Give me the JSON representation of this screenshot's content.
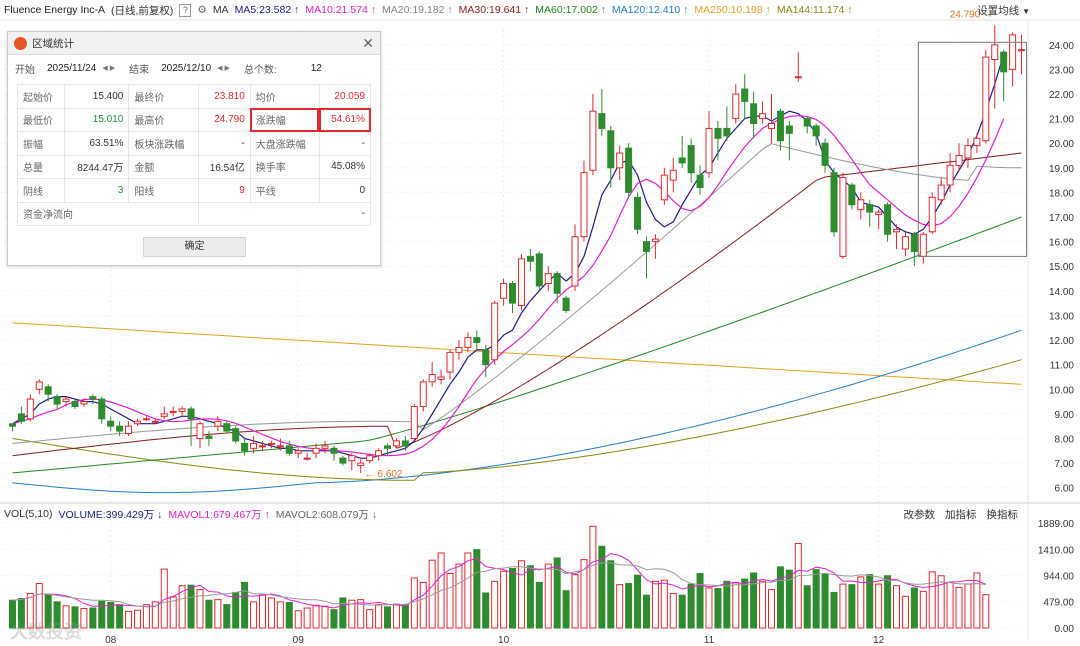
{
  "header": {
    "stock_title": "Fluence Energy Inc-A",
    "mode": "(日线,前复权)",
    "help": "?",
    "ma_label": "MA",
    "ma_items": [
      {
        "text": "MA5:23.582",
        "color": "#1b1b8c"
      },
      {
        "text": "MA10:21.574",
        "color": "#e020d0"
      },
      {
        "text": "MA20:19.182",
        "color": "#888888"
      },
      {
        "text": "MA30:19.641",
        "color": "#8b1a1a"
      },
      {
        "text": "MA60:17.002",
        "color": "#1f8a1f"
      },
      {
        "text": "MA120:12.410",
        "color": "#1e7fd0"
      },
      {
        "text": "MA250:10.198",
        "color": "#e8a020"
      },
      {
        "text": "MA144:11.174",
        "color": "#8a8a10"
      }
    ],
    "set_ma": "设置均线"
  },
  "dialog": {
    "title": "区域统计",
    "start_label": "开始",
    "start_value": "2025/11/24",
    "end_label": "结束",
    "end_value": "2025/12/10",
    "count_label": "总个数:",
    "count_value": "12",
    "rows": [
      [
        {
          "l": "起始价",
          "v": "15.400",
          "c": ""
        },
        {
          "l": "最终价",
          "v": "23.810",
          "c": "red"
        },
        {
          "l": "均价",
          "v": "20.059",
          "c": "red"
        }
      ],
      [
        {
          "l": "最低价",
          "v": "15.010",
          "c": "green"
        },
        {
          "l": "最高价",
          "v": "24.790",
          "c": "red"
        },
        {
          "l": "涨跌幅",
          "v": "54.61%",
          "c": "red",
          "hl": true
        }
      ],
      [
        {
          "l": "振幅",
          "v": "63.51%",
          "c": ""
        },
        {
          "l": "板块涨跌幅",
          "v": "-",
          "c": ""
        },
        {
          "l": "大盘涨跌幅",
          "v": "-",
          "c": ""
        }
      ],
      [
        {
          "l": "总量",
          "v": "8244.47万",
          "c": ""
        },
        {
          "l": "金额",
          "v": "16.54亿",
          "c": ""
        },
        {
          "l": "换手率",
          "v": "45.08%",
          "c": ""
        }
      ],
      [
        {
          "l": "阴线",
          "v": "3",
          "c": "green"
        },
        {
          "l": "阳线",
          "v": "9",
          "c": "red"
        },
        {
          "l": "平线",
          "v": "0",
          "c": ""
        }
      ],
      [
        {
          "l": "资金净流向",
          "v": "-",
          "c": ""
        }
      ]
    ],
    "ok_label": "确定"
  },
  "volume_header": {
    "label": "VOL(5,10)",
    "items": [
      {
        "text": "VOLUME:399.429万",
        "color": "#1b1b8c"
      },
      {
        "text": "MAVOL1:679.467万",
        "color": "#e020d0"
      },
      {
        "text": "MAVOL2:608.079万",
        "color": "#666666"
      }
    ],
    "buttons": [
      "改参数",
      "加指标",
      "换指标"
    ]
  },
  "annotations": {
    "high": "24.790",
    "low": "6.602"
  },
  "watermark": "大数投资",
  "colors": {
    "up": "#e0292e",
    "down": "#2e8b2e",
    "bg": "#ffffff"
  },
  "chart_data": {
    "type": "candlestick",
    "price_axis": {
      "min": 5.5,
      "max": 24.6,
      "ticks": [
        "24.000",
        "23.000",
        "22.000",
        "21.000",
        "20.000",
        "19.000",
        "18.000",
        "17.000",
        "16.000",
        "15.000",
        "14.000",
        "13.000",
        "12.000",
        "11.000",
        "10.000",
        "9.000",
        "8.000",
        "7.000",
        "6.000"
      ]
    },
    "volume_axis": {
      "ticks": [
        "1889.00",
        "1410.00",
        "944.00",
        "479.00",
        "0.00"
      ],
      "max": 1889
    },
    "x_labels": [
      {
        "i": 11,
        "t": "08"
      },
      {
        "i": 32,
        "t": "09"
      },
      {
        "i": 55,
        "t": "10"
      },
      {
        "i": 78,
        "t": "11"
      },
      {
        "i": 97,
        "t": "12"
      }
    ],
    "candles": [
      [
        8.6,
        8.5,
        8.6,
        8.3
      ],
      [
        9.0,
        8.7,
        9.3,
        8.6
      ],
      [
        8.8,
        9.6,
        9.8,
        8.7
      ],
      [
        10.0,
        10.3,
        10.4,
        9.8
      ],
      [
        10.1,
        9.8,
        10.2,
        9.5
      ],
      [
        9.7,
        9.4,
        9.8,
        9.2
      ],
      [
        9.5,
        9.6,
        9.7,
        9.3
      ],
      [
        9.5,
        9.3,
        9.6,
        9.2
      ],
      [
        9.4,
        9.5,
        9.6,
        9.3
      ],
      [
        9.7,
        9.6,
        9.8,
        9.4
      ],
      [
        9.6,
        8.8,
        9.7,
        8.6
      ],
      [
        8.7,
        8.5,
        8.9,
        8.3
      ],
      [
        8.5,
        8.3,
        8.7,
        8.1
      ],
      [
        8.2,
        8.5,
        8.7,
        8.1
      ],
      [
        8.6,
        8.7,
        8.8,
        8.5
      ],
      [
        8.8,
        8.8,
        8.9,
        8.7
      ],
      [
        8.7,
        8.7,
        8.8,
        8.6
      ],
      [
        8.9,
        9.0,
        9.3,
        8.8
      ],
      [
        9.1,
        9.1,
        9.3,
        8.9
      ],
      [
        9.1,
        9.2,
        9.3,
        8.9
      ],
      [
        9.2,
        8.8,
        9.3,
        7.7
      ],
      [
        8.0,
        8.6,
        8.7,
        7.6
      ],
      [
        8.1,
        8.0,
        8.3,
        7.7
      ],
      [
        8.5,
        8.7,
        8.9,
        8.3
      ],
      [
        8.6,
        8.3,
        8.7,
        8.2
      ],
      [
        8.4,
        7.9,
        8.5,
        7.8
      ],
      [
        7.8,
        7.5,
        8.0,
        7.3
      ],
      [
        7.6,
        7.8,
        8.1,
        7.4
      ],
      [
        7.7,
        7.7,
        7.9,
        7.5
      ],
      [
        7.8,
        7.8,
        7.9,
        7.6
      ],
      [
        7.7,
        7.7,
        8.0,
        7.5
      ],
      [
        7.7,
        7.4,
        7.9,
        7.3
      ],
      [
        7.4,
        7.5,
        7.6,
        7.2
      ],
      [
        7.2,
        7.2,
        7.4,
        7.1
      ],
      [
        7.4,
        7.6,
        7.8,
        7.2
      ],
      [
        7.6,
        7.7,
        7.9,
        7.4
      ],
      [
        7.6,
        7.4,
        7.7,
        7.1
      ],
      [
        7.2,
        7.0,
        7.3,
        6.9
      ],
      [
        7.1,
        7.3,
        7.4,
        6.7
      ],
      [
        6.9,
        7.0,
        7.2,
        6.6
      ],
      [
        7.1,
        7.3,
        7.4,
        7.0
      ],
      [
        7.3,
        7.5,
        7.6,
        7.1
      ],
      [
        7.7,
        7.6,
        7.8,
        7.3
      ],
      [
        7.7,
        7.9,
        8.0,
        7.6
      ],
      [
        7.9,
        7.7,
        8.1,
        7.5
      ],
      [
        8.0,
        9.3,
        9.4,
        7.9
      ],
      [
        9.3,
        10.3,
        10.4,
        9.1
      ],
      [
        10.3,
        10.6,
        11.1,
        10.1
      ],
      [
        10.4,
        10.5,
        10.8,
        10.2
      ],
      [
        10.7,
        11.5,
        11.6,
        10.4
      ],
      [
        11.5,
        11.7,
        12.0,
        11.2
      ],
      [
        11.7,
        12.1,
        12.3,
        11.5
      ],
      [
        12.1,
        11.9,
        12.4,
        11.6
      ],
      [
        11.6,
        11.0,
        11.8,
        10.5
      ],
      [
        11.2,
        13.5,
        13.6,
        11.0
      ],
      [
        13.7,
        14.3,
        14.5,
        13.4
      ],
      [
        14.3,
        13.5,
        14.4,
        13.1
      ],
      [
        13.4,
        15.3,
        15.5,
        13.2
      ],
      [
        15.4,
        15.2,
        15.7,
        14.8
      ],
      [
        15.5,
        14.2,
        15.6,
        14.0
      ],
      [
        14.3,
        14.7,
        15.0,
        14.0
      ],
      [
        14.7,
        13.9,
        14.8,
        13.5
      ],
      [
        13.7,
        13.2,
        13.8,
        13.1
      ],
      [
        14.2,
        16.2,
        16.7,
        14.0
      ],
      [
        16.2,
        18.8,
        19.3,
        16.0
      ],
      [
        18.9,
        21.3,
        22.0,
        18.7
      ],
      [
        21.2,
        20.6,
        22.2,
        20.3
      ],
      [
        20.5,
        19.0,
        20.7,
        18.2
      ],
      [
        19.0,
        19.6,
        19.9,
        18.5
      ],
      [
        19.8,
        18.0,
        20.0,
        17.8
      ],
      [
        17.8,
        16.5,
        18.0,
        16.3
      ],
      [
        16.0,
        15.6,
        16.2,
        14.5
      ],
      [
        16.0,
        16.1,
        16.3,
        15.3
      ],
      [
        17.7,
        18.7,
        19.0,
        17.5
      ],
      [
        18.5,
        18.9,
        19.4,
        18.0
      ],
      [
        19.4,
        19.2,
        20.3,
        19.0
      ],
      [
        19.9,
        18.8,
        20.2,
        18.4
      ],
      [
        18.7,
        18.2,
        19.1,
        17.9
      ],
      [
        18.8,
        20.6,
        21.3,
        18.6
      ],
      [
        20.6,
        20.2,
        20.9,
        19.3
      ],
      [
        20.6,
        20.3,
        21.5,
        20.1
      ],
      [
        21.0,
        22.0,
        22.4,
        20.8
      ],
      [
        22.2,
        21.7,
        22.8,
        21.0
      ],
      [
        21.6,
        20.8,
        22.1,
        20.2
      ],
      [
        21.0,
        21.2,
        21.7,
        20.8
      ],
      [
        20.6,
        20.8,
        22.0,
        20.0
      ],
      [
        21.3,
        20.1,
        21.4,
        19.7
      ],
      [
        20.7,
        20.4,
        20.9,
        19.3
      ],
      [
        22.7,
        22.7,
        23.7,
        22.5
      ],
      [
        21.0,
        20.7,
        21.1,
        20.4
      ],
      [
        20.7,
        20.3,
        20.8,
        19.9
      ],
      [
        20.0,
        19.1,
        20.2,
        18.8
      ],
      [
        18.8,
        16.4,
        19.0,
        16.2
      ],
      [
        15.4,
        18.6,
        18.8,
        15.3
      ],
      [
        18.3,
        17.5,
        18.4,
        17.3
      ],
      [
        17.3,
        17.7,
        18.0,
        16.9
      ],
      [
        17.5,
        17.2,
        17.7,
        16.6
      ],
      [
        17.1,
        17.2,
        17.3,
        16.5
      ],
      [
        17.5,
        16.3,
        17.6,
        16.0
      ],
      [
        16.4,
        16.5,
        16.7,
        15.7
      ],
      [
        15.7,
        16.2,
        16.4,
        15.4
      ],
      [
        16.3,
        15.6,
        16.4,
        15.0
      ],
      [
        15.4,
        16.3,
        16.4,
        15.1
      ],
      [
        16.4,
        17.8,
        18.0,
        16.3
      ],
      [
        17.7,
        18.3,
        18.6,
        17.5
      ],
      [
        18.3,
        19.1,
        19.6,
        18.0
      ],
      [
        19.1,
        19.5,
        20.0,
        18.9
      ],
      [
        19.4,
        19.9,
        20.2,
        19.0
      ],
      [
        19.9,
        20.2,
        20.4,
        19.6
      ],
      [
        20.1,
        23.5,
        23.8,
        20.0
      ],
      [
        23.4,
        24.0,
        24.79,
        21.4
      ],
      [
        23.7,
        22.9,
        23.8,
        21.7
      ],
      [
        23.0,
        24.4,
        24.5,
        22.3
      ],
      [
        23.8,
        23.8,
        24.4,
        22.8
      ]
    ],
    "volumes": [
      500,
      530,
      620,
      800,
      600,
      470,
      400,
      380,
      350,
      360,
      480,
      460,
      420,
      300,
      320,
      420,
      470,
      1060,
      560,
      760,
      770,
      690,
      500,
      510,
      420,
      640,
      820,
      470,
      590,
      540,
      470,
      460,
      310,
      360,
      410,
      390,
      330,
      540,
      500,
      510,
      330,
      420,
      380,
      430,
      410,
      900,
      820,
      1220,
      1350,
      980,
      1150,
      1350,
      1410,
      630,
      840,
      1020,
      1070,
      1210,
      1120,
      820,
      1150,
      1260,
      670,
      960,
      1230,
      1830,
      1470,
      1210,
      780,
      800,
      950,
      590,
      840,
      860,
      620,
      590,
      790,
      980,
      720,
      710,
      840,
      820,
      880,
      990,
      840,
      690,
      1100,
      1040,
      1520,
      760,
      1050,
      970,
      640,
      790,
      780,
      920,
      960,
      790,
      940,
      760,
      570,
      720,
      660,
      1010,
      940,
      820,
      730,
      790,
      990,
      600
    ],
    "ma_lines": {
      "MA5": [
        8.6,
        8.8,
        9.0,
        9.4,
        9.6,
        9.7,
        9.7,
        9.6,
        9.5,
        9.5,
        9.4,
        9.2,
        9.0,
        8.8,
        8.6,
        8.6,
        8.6,
        8.7,
        8.8,
        8.9,
        8.9,
        8.8,
        8.7,
        8.6,
        8.4,
        8.3,
        8.0,
        7.9,
        7.8,
        7.7,
        7.6,
        7.6,
        7.5,
        7.5,
        7.5,
        7.5,
        7.5,
        7.4,
        7.3,
        7.2,
        7.2,
        7.3,
        7.4,
        7.5,
        7.6,
        7.9,
        8.4,
        9.0,
        9.6,
        10.2,
        10.7,
        11.3,
        11.6,
        11.6,
        11.8,
        12.2,
        12.4,
        13.1,
        13.6,
        14.0,
        14.4,
        14.7,
        14.4,
        14.7,
        15.4,
        16.6,
        17.9,
        18.5,
        19.2,
        19.3,
        18.7,
        17.6,
        16.9,
        16.6,
        16.8,
        17.5,
        18.1,
        18.7,
        19.0,
        19.6,
        20.2,
        20.6,
        21.0,
        21.1,
        21.1,
        20.9,
        21.1,
        21.3,
        21.2,
        20.9,
        20.4,
        19.3,
        18.8,
        18.5,
        18.2,
        17.6,
        17.5,
        17.4,
        17.0,
        16.6,
        16.4,
        16.3,
        16.5,
        17.0,
        17.6,
        18.3,
        18.9,
        19.5,
        20.3,
        21.3,
        22.4,
        23.6
      ]
    }
  }
}
